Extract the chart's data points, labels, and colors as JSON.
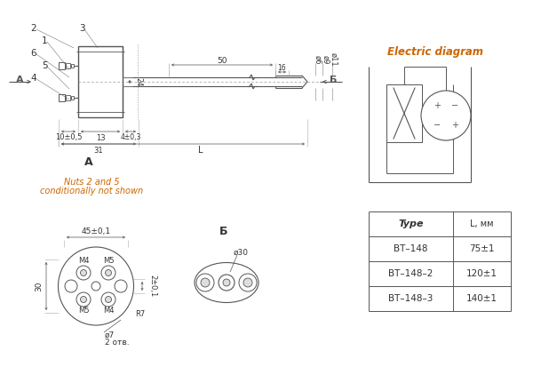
{
  "title": "Electric diagram",
  "table_header": [
    "Type",
    "L, мм"
  ],
  "table_rows": [
    [
      "BT–148",
      "75±1"
    ],
    [
      "BT–148–2",
      "120±1"
    ],
    [
      "BT–148–3",
      "140±1"
    ]
  ],
  "bg_color": "#ffffff",
  "line_color": "#555555",
  "italic_orange": "#cc6600",
  "fig_width": 6.0,
  "fig_height": 4.22
}
